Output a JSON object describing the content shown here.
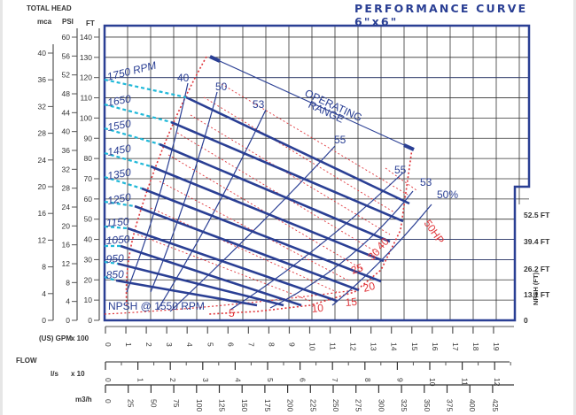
{
  "chart_data": {
    "type": "line",
    "title": "PERFORMANCE CURVE 6\"x6\"",
    "y_axis": {
      "title": "TOTAL HEAD",
      "units": [
        {
          "name": "mca",
          "ticks": [
            0,
            4,
            8,
            12,
            16,
            20,
            24,
            28,
            32,
            36,
            40
          ]
        },
        {
          "name": "PSI",
          "ticks": [
            0,
            4,
            8,
            12,
            16,
            20,
            24,
            28,
            32,
            36,
            40,
            44,
            48,
            52,
            56,
            60
          ]
        },
        {
          "name": "FT",
          "ticks": [
            0,
            10,
            20,
            30,
            40,
            50,
            60,
            70,
            80,
            90,
            100,
            110,
            120,
            130,
            140
          ]
        }
      ],
      "ylim_ft": [
        0,
        140
      ]
    },
    "x_axis": {
      "title": "FLOW",
      "scales": [
        {
          "name": "(US) GPM",
          "multiplier": "x 100",
          "ticks": [
            0,
            1,
            2,
            3,
            4,
            5,
            6,
            7,
            8,
            9,
            10,
            11,
            12,
            13,
            14,
            15,
            16,
            17,
            18,
            19
          ]
        },
        {
          "name": "l/s",
          "multiplier": "x 10",
          "ticks": [
            0,
            1,
            2,
            3,
            4,
            5,
            6,
            7,
            8,
            9,
            10,
            11,
            12
          ]
        },
        {
          "name": "m3/h",
          "multiplier": "",
          "ticks": [
            0,
            25,
            50,
            75,
            100,
            125,
            150,
            175,
            200,
            225,
            250,
            275,
            300,
            325,
            350,
            375,
            400,
            425
          ]
        }
      ]
    },
    "npsh_axis": {
      "title": "NPSH (FT)",
      "ticks": [
        "0",
        "13.1 FT",
        "26.2 FT",
        "39.4 FT",
        "52.5 FT"
      ]
    },
    "series": [
      {
        "name": "1750 RPM",
        "x_gpm": [
          4.0,
          15.0
        ],
        "y_ft": [
          110,
          60
        ]
      },
      {
        "name": "1650",
        "x_gpm": [
          3.5,
          14.6
        ],
        "y_ft": [
          98,
          52
        ]
      },
      {
        "name": "1550",
        "x_gpm": [
          3.0,
          14.1
        ],
        "y_ft": [
          87,
          46
        ]
      },
      {
        "name": "1450",
        "x_gpm": [
          2.4,
          13.6
        ],
        "y_ft": [
          76,
          38
        ]
      },
      {
        "name": "1350",
        "x_gpm": [
          1.8,
          13.6
        ],
        "y_ft": [
          68,
          30
        ]
      },
      {
        "name": "1250",
        "x_gpm": [
          1.4,
          11.3
        ],
        "y_ft": [
          59,
          24
        ]
      },
      {
        "name": "1150",
        "x_gpm": [
          1.1,
          10.3
        ],
        "y_ft": [
          52,
          20
        ]
      },
      {
        "name": "1050",
        "x_gpm": [
          0.8,
          9.0
        ],
        "y_ft": [
          45,
          16
        ]
      },
      {
        "name": "950",
        "x_gpm": [
          0.6,
          8.7
        ],
        "y_ft": [
          38,
          12
        ]
      },
      {
        "name": "850",
        "x_gpm": [
          0.6,
          8.3
        ],
        "y_ft": [
          31,
          6
        ]
      }
    ],
    "efficiency_lines": [
      "40",
      "50",
      "53",
      "55",
      "55",
      "53",
      "50%"
    ],
    "power_lines": [
      "5",
      "10",
      "15",
      "20",
      "25",
      "30",
      "40",
      "50HP"
    ],
    "annotations": [
      "OPERATING RANGE",
      "NPSH @ 1550 RPM"
    ],
    "grid": true
  },
  "labels": {
    "title": "PERFORMANCE CURVE  6\"x6\"",
    "total_head": "TOTAL HEAD",
    "mca": "mca",
    "psi": "PSI",
    "ft": "FT",
    "flow": "FLOW",
    "gpm": "(US) GPM",
    "gpm_mult": "x 100",
    "ls": "l/s",
    "ls_mult": "x 10",
    "m3h": "m3/h",
    "npsh_title": "NPSH (FT)",
    "operating_line1": "OPERATING",
    "operating_line2": "RANGE",
    "npsh_note": "NPSH @ 1550 RPM"
  },
  "colors": {
    "curve": "#2a3f94",
    "red": "#e0353a",
    "cyan": "#1fb8d8",
    "grid": "#333333"
  }
}
